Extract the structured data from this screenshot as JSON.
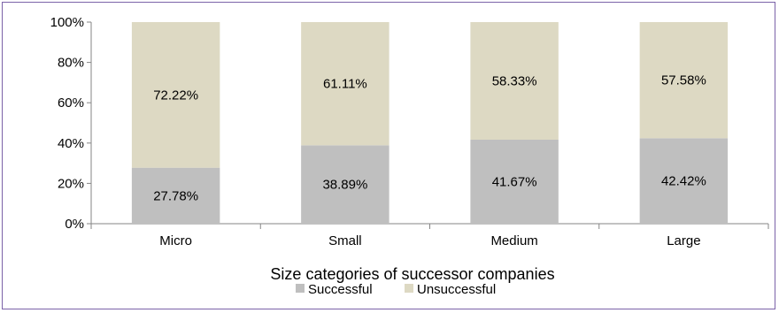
{
  "chart_data": {
    "type": "bar",
    "stacked": true,
    "percent_stacked": true,
    "categories": [
      "Micro",
      "Small",
      "Medium",
      "Large"
    ],
    "series": [
      {
        "name": "Successful",
        "values": [
          27.78,
          38.89,
          41.67,
          42.42
        ],
        "labels": [
          "27.78%",
          "38.89%",
          "41.67%",
          "42.42%"
        ],
        "color": "#bfbfbf"
      },
      {
        "name": "Unsuccessful",
        "values": [
          72.22,
          61.11,
          58.33,
          57.58
        ],
        "labels": [
          "72.22%",
          "61.11%",
          "58.33%",
          "57.58%"
        ],
        "color": "#ddd9c3"
      }
    ],
    "xlabel": "Size categories of successor companies",
    "ylabel": "",
    "ylim": [
      0,
      100
    ],
    "yticks": [
      "0%",
      "20%",
      "40%",
      "60%",
      "80%",
      "100%"
    ],
    "grid": false,
    "legend_position": "bottom"
  }
}
